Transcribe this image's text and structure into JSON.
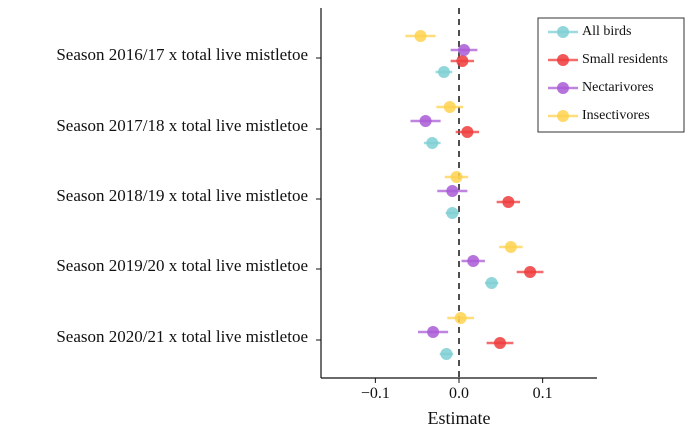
{
  "chart_data": {
    "type": "scatter",
    "xlabel": "Estimate",
    "xlim": [
      -0.165,
      0.165
    ],
    "xticks": [
      -0.1,
      0.0,
      0.1
    ],
    "xtick_labels": [
      "−0.1",
      "0.0",
      "0.1"
    ],
    "reference_line": 0,
    "grid": false,
    "legend_position": "top-right",
    "categories": [
      "Season 2016/17 x total live mistletoe",
      "Season 2017/18 x total live mistletoe",
      "Season 2018/19 x total live mistletoe",
      "Season 2019/20 x total live mistletoe",
      "Season 2020/21 x total live mistletoe"
    ],
    "series": [
      {
        "name": "All birds",
        "color": "#7ecfd3",
        "values": [
          -0.018,
          -0.032,
          -0.008,
          0.039,
          -0.015
        ],
        "ci_low": [
          -0.028,
          -0.042,
          -0.016,
          0.031,
          -0.023
        ],
        "ci_high": [
          -0.008,
          -0.022,
          0.0,
          0.047,
          -0.007
        ]
      },
      {
        "name": "Small residents",
        "color": "#ef3b3b",
        "values": [
          0.004,
          0.01,
          0.059,
          0.085,
          0.049
        ],
        "ci_low": [
          -0.01,
          -0.004,
          0.045,
          0.069,
          0.033
        ],
        "ci_high": [
          0.018,
          0.024,
          0.073,
          0.101,
          0.065
        ]
      },
      {
        "name": "Nectarivores",
        "color": "#a95ad6",
        "values": [
          0.006,
          -0.04,
          -0.008,
          0.017,
          -0.031
        ],
        "ci_low": [
          -0.01,
          -0.058,
          -0.026,
          0.003,
          -0.049
        ],
        "ci_high": [
          0.022,
          -0.022,
          0.01,
          0.031,
          -0.013
        ]
      },
      {
        "name": "Insectivores",
        "color": "#ffd24f",
        "values": [
          -0.046,
          -0.011,
          -0.003,
          0.062,
          0.002
        ],
        "ci_low": [
          -0.064,
          -0.027,
          -0.017,
          0.048,
          -0.014
        ],
        "ci_high": [
          -0.028,
          0.005,
          0.011,
          0.076,
          0.018
        ]
      }
    ]
  }
}
